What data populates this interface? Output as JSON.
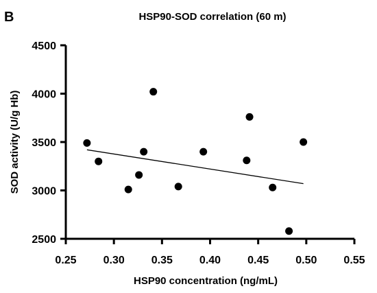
{
  "panel_label": "B",
  "chart_data": {
    "type": "scatter",
    "title": "HSP90-SOD correlation (60 m)",
    "xlabel": "HSP90 concentration (ng/mL)",
    "ylabel": "SOD activity (U/g Hb)",
    "xlim": [
      0.25,
      0.55
    ],
    "ylim": [
      2500,
      4500
    ],
    "x_ticks": [
      "0.25",
      "0.30",
      "0.35",
      "0.40",
      "0.45",
      "0.50",
      "0.55"
    ],
    "y_ticks": [
      "2500",
      "3000",
      "3500",
      "4000",
      "4500"
    ],
    "grid": false,
    "points": [
      {
        "x": 0.272,
        "y": 3490
      },
      {
        "x": 0.284,
        "y": 3300
      },
      {
        "x": 0.315,
        "y": 3010
      },
      {
        "x": 0.326,
        "y": 3160
      },
      {
        "x": 0.331,
        "y": 3400
      },
      {
        "x": 0.341,
        "y": 4020
      },
      {
        "x": 0.367,
        "y": 3040
      },
      {
        "x": 0.393,
        "y": 3400
      },
      {
        "x": 0.438,
        "y": 3310
      },
      {
        "x": 0.441,
        "y": 3760
      },
      {
        "x": 0.465,
        "y": 3030
      },
      {
        "x": 0.482,
        "y": 2580
      },
      {
        "x": 0.497,
        "y": 3500
      }
    ],
    "trend_line": {
      "x": [
        0.272,
        0.497
      ],
      "y": [
        3420,
        3070
      ]
    },
    "marker_color": "#000000",
    "line_color": "#000000"
  }
}
